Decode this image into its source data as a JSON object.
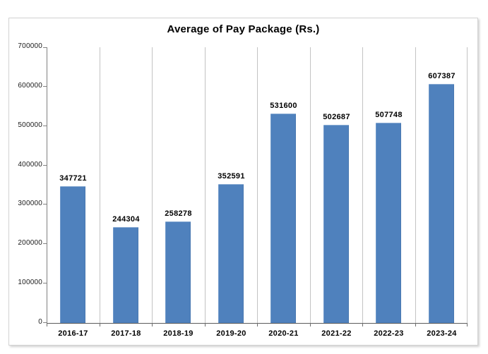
{
  "chart_data": {
    "type": "bar",
    "title": "Average of Pay Package (Rs.)",
    "categories": [
      "2016-17",
      "2017-18",
      "2018-19",
      "2019-20",
      "2020-21",
      "2021-22",
      "2022-23",
      "2023-24"
    ],
    "values": [
      347721,
      244304,
      258278,
      352591,
      531600,
      502687,
      507748,
      607387
    ],
    "data_labels": [
      "347721",
      "244304",
      "258278",
      "352591",
      "531600",
      "502687",
      "507748",
      "607387"
    ],
    "xlabel": "",
    "ylabel": "",
    "ylim": [
      0,
      700000
    ],
    "ytick_step": 100000,
    "ytick_labels": [
      "0",
      "100000",
      "200000",
      "300000",
      "400000",
      "500000",
      "600000",
      "700000"
    ],
    "grid": "vertical-only",
    "legend": "none",
    "colors": {
      "bar": "#4f81bd",
      "gridline": "#c3c3c3",
      "y_axis_line": "#808080",
      "x_axis_line": "#5a5a5a",
      "text": "#000000",
      "frame_border": "#d3d3d3"
    }
  }
}
